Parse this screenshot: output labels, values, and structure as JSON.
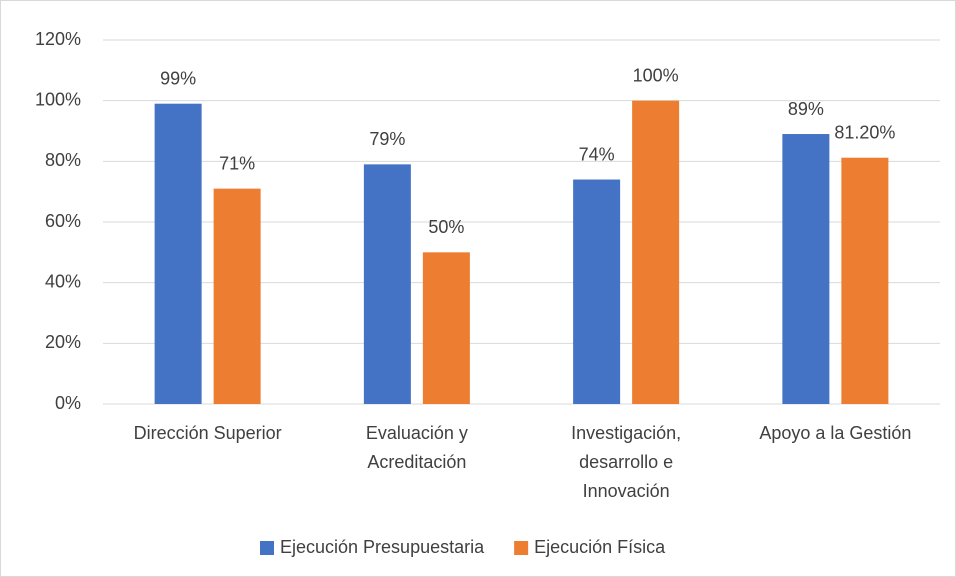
{
  "chart_data": {
    "type": "bar",
    "categories": [
      "Dirección Superior",
      "Evaluación y\nAcreditación",
      "Investigación,\ndesarrollo e\nInnovación",
      "Apoyo a la Gestión"
    ],
    "series": [
      {
        "name": "Ejecución Presupuestaria",
        "color": "#4472c4",
        "values": [
          99,
          79,
          74,
          89
        ],
        "value_labels": [
          "99%",
          "79%",
          "74%",
          "89%"
        ]
      },
      {
        "name": "Ejecución Física",
        "color": "#ed7d31",
        "values": [
          71,
          50,
          100,
          81.2
        ],
        "value_labels": [
          "71%",
          "50%",
          "100%",
          "81.20%"
        ]
      }
    ],
    "ylim": [
      0,
      120
    ],
    "yticks": [
      {
        "value": 0,
        "label": "0%"
      },
      {
        "value": 20,
        "label": "20%"
      },
      {
        "value": 40,
        "label": "40%"
      },
      {
        "value": 60,
        "label": "60%"
      },
      {
        "value": 80,
        "label": "80%"
      },
      {
        "value": 100,
        "label": "100%"
      },
      {
        "value": 120,
        "label": "120%"
      }
    ],
    "grid": true,
    "legend": "bottom"
  }
}
